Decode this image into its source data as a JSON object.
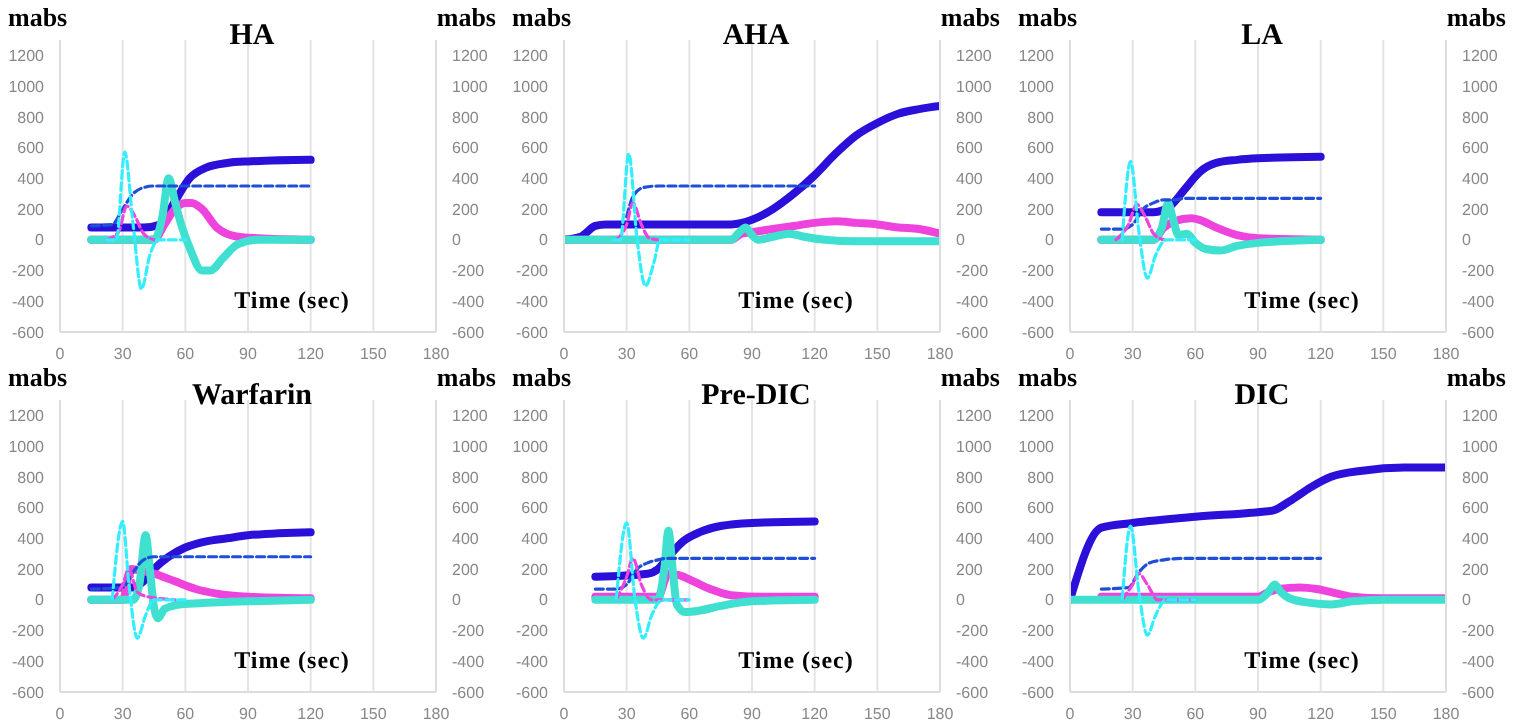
{
  "chart_data": [
    {
      "type": "line",
      "title": "HA",
      "xlabel": "Time (sec)",
      "ylabel": "mabs",
      "y2label": "mabs",
      "xlim": [
        0,
        180
      ],
      "xticks": [
        0,
        30,
        60,
        90,
        120,
        150,
        180
      ],
      "ylim": [
        -600,
        1300
      ],
      "yticks": [
        -600,
        -400,
        -200,
        0,
        200,
        400,
        600,
        800,
        1000,
        1200
      ],
      "y2lim": [
        -600,
        1300
      ],
      "y2ticks": [
        -600,
        -400,
        -200,
        0,
        200,
        400,
        600,
        800,
        1000,
        1200
      ],
      "grid": "x",
      "marker": "none",
      "series": [
        {
          "color": "#2a10d8",
          "line_style": "solid",
          "x": [
            15,
            40,
            48,
            55,
            62,
            70,
            80,
            90,
            120
          ],
          "values": [
            80,
            80,
            100,
            250,
            400,
            470,
            500,
            510,
            520
          ]
        },
        {
          "color": "#ee44dd",
          "line_style": "solid",
          "x": [
            15,
            45,
            50,
            55,
            60,
            63,
            68,
            75,
            85,
            95,
            120
          ],
          "values": [
            0,
            0,
            100,
            200,
            240,
            240,
            200,
            80,
            20,
            10,
            0
          ]
        },
        {
          "color": "#40e0d0",
          "line_style": "solid",
          "x": [
            15,
            45,
            49,
            52,
            55,
            58,
            62,
            68,
            72,
            78,
            85,
            95,
            120
          ],
          "values": [
            0,
            0,
            150,
            400,
            250,
            100,
            -50,
            -200,
            -200,
            -120,
            -30,
            0,
            0
          ]
        },
        {
          "color": "#1f4fd8",
          "line_style": "dashed",
          "x": [
            15,
            25,
            30,
            35,
            40,
            45,
            120
          ],
          "values": [
            90,
            100,
            200,
            300,
            340,
            350,
            350
          ]
        },
        {
          "color": "#ee44dd",
          "line_style": "dashed",
          "x": [
            22,
            28,
            32,
            36,
            40,
            45
          ],
          "values": [
            0,
            50,
            220,
            150,
            40,
            0
          ]
        },
        {
          "color": "#33eeff",
          "line_style": "dashed",
          "x": [
            22,
            27,
            31,
            35,
            39,
            43,
            47,
            60
          ],
          "values": [
            0,
            0,
            570,
            100,
            -320,
            -100,
            0,
            0
          ]
        }
      ]
    },
    {
      "type": "line",
      "title": "AHA",
      "xlabel": "Time (sec)",
      "ylabel": "mabs",
      "y2label": "mabs",
      "xlim": [
        0,
        180
      ],
      "xticks": [
        0,
        30,
        60,
        90,
        120,
        150,
        180
      ],
      "ylim": [
        -600,
        1300
      ],
      "yticks": [
        -600,
        -400,
        -200,
        0,
        200,
        400,
        600,
        800,
        1000,
        1200
      ],
      "y2lim": [
        -600,
        1300
      ],
      "y2ticks": [
        -600,
        -400,
        -200,
        0,
        200,
        400,
        600,
        800,
        1000,
        1200
      ],
      "grid": "x",
      "marker": "none",
      "series": [
        {
          "color": "#2a10d8",
          "line_style": "solid",
          "x": [
            0,
            8,
            15,
            20,
            80,
            90,
            100,
            110,
            120,
            130,
            140,
            150,
            160,
            170,
            180
          ],
          "values": [
            0,
            20,
            90,
            100,
            100,
            130,
            200,
            300,
            420,
            560,
            680,
            760,
            820,
            850,
            870
          ]
        },
        {
          "color": "#ee44dd",
          "line_style": "solid",
          "x": [
            0,
            80,
            85,
            90,
            100,
            110,
            120,
            130,
            140,
            150,
            160,
            170,
            180
          ],
          "values": [
            0,
            0,
            40,
            50,
            70,
            90,
            110,
            120,
            110,
            100,
            80,
            70,
            40
          ]
        },
        {
          "color": "#40e0d0",
          "line_style": "solid",
          "x": [
            0,
            80,
            84,
            87,
            90,
            93,
            100,
            108,
            115,
            125,
            140,
            180
          ],
          "values": [
            0,
            0,
            50,
            80,
            30,
            0,
            20,
            40,
            20,
            0,
            -10,
            -10
          ]
        },
        {
          "color": "#1f4fd8",
          "line_style": "dashed",
          "x": [
            30,
            33,
            38,
            45,
            120
          ],
          "values": [
            150,
            280,
            340,
            350,
            350
          ]
        },
        {
          "color": "#ee44dd",
          "line_style": "dashed",
          "x": [
            25,
            30,
            33,
            37,
            41,
            45
          ],
          "values": [
            0,
            100,
            240,
            100,
            10,
            0
          ]
        },
        {
          "color": "#33eeff",
          "line_style": "dashed",
          "x": [
            24,
            27,
            31,
            35,
            39,
            43,
            46,
            60
          ],
          "values": [
            0,
            0,
            560,
            0,
            -300,
            -150,
            0,
            0
          ]
        }
      ]
    },
    {
      "type": "line",
      "title": "LA",
      "xlabel": "Time (sec)",
      "ylabel": "mabs",
      "y2label": "mabs",
      "xlim": [
        0,
        180
      ],
      "xticks": [
        0,
        30,
        60,
        90,
        120,
        150,
        180
      ],
      "ylim": [
        -600,
        1300
      ],
      "yticks": [
        -600,
        -400,
        -200,
        0,
        200,
        400,
        600,
        800,
        1000,
        1200
      ],
      "y2lim": [
        -600,
        1300
      ],
      "y2ticks": [
        -600,
        -400,
        -200,
        0,
        200,
        400,
        600,
        800,
        1000,
        1200
      ],
      "grid": "x",
      "marker": "none",
      "series": [
        {
          "color": "#2a10d8",
          "line_style": "solid",
          "x": [
            15,
            40,
            48,
            55,
            62,
            70,
            80,
            90,
            120
          ],
          "values": [
            180,
            180,
            220,
            330,
            440,
            500,
            520,
            530,
            540
          ]
        },
        {
          "color": "#ee44dd",
          "line_style": "solid",
          "x": [
            15,
            40,
            45,
            50,
            58,
            62,
            70,
            80,
            90,
            120
          ],
          "values": [
            0,
            0,
            80,
            120,
            140,
            130,
            80,
            30,
            10,
            0
          ]
        },
        {
          "color": "#40e0d0",
          "line_style": "solid",
          "x": [
            15,
            40,
            44,
            47,
            49,
            52,
            56,
            60,
            65,
            72,
            80,
            90,
            120
          ],
          "values": [
            0,
            0,
            80,
            240,
            150,
            30,
            40,
            -20,
            -60,
            -70,
            -40,
            -20,
            0
          ]
        },
        {
          "color": "#1f4fd8",
          "line_style": "dashed",
          "x": [
            15,
            25,
            30,
            35,
            40,
            45,
            50,
            55,
            120
          ],
          "values": [
            70,
            70,
            100,
            200,
            240,
            260,
            260,
            270,
            270
          ]
        },
        {
          "color": "#ee44dd",
          "line_style": "dashed",
          "x": [
            22,
            28,
            32,
            36,
            40,
            45
          ],
          "values": [
            0,
            100,
            230,
            150,
            40,
            0
          ]
        },
        {
          "color": "#33eeff",
          "line_style": "dashed",
          "x": [
            25,
            29,
            33,
            37,
            41,
            46,
            60
          ],
          "values": [
            0,
            510,
            50,
            -250,
            -100,
            0,
            0
          ]
        }
      ]
    },
    {
      "type": "line",
      "title": "Warfarin",
      "xlabel": "Time (sec)",
      "ylabel": "mabs",
      "y2label": "mabs",
      "xlim": [
        0,
        180
      ],
      "xticks": [
        0,
        30,
        60,
        90,
        120,
        150,
        180
      ],
      "ylim": [
        -600,
        1300
      ],
      "yticks": [
        -600,
        -400,
        -200,
        0,
        200,
        400,
        600,
        800,
        1000,
        1200
      ],
      "y2lim": [
        -600,
        1300
      ],
      "y2ticks": [
        -600,
        -400,
        -200,
        0,
        200,
        400,
        600,
        800,
        1000,
        1200
      ],
      "grid": "x",
      "marker": "none",
      "series": [
        {
          "color": "#2a10d8",
          "line_style": "solid",
          "x": [
            15,
            35,
            40,
            45,
            52,
            60,
            70,
            80,
            90,
            120
          ],
          "values": [
            80,
            80,
            120,
            200,
            280,
            340,
            380,
            400,
            420,
            440
          ]
        },
        {
          "color": "#ee44dd",
          "line_style": "solid",
          "x": [
            15,
            30,
            34,
            38,
            45,
            55,
            65,
            75,
            90,
            120
          ],
          "values": [
            0,
            0,
            200,
            190,
            170,
            120,
            70,
            40,
            20,
            10
          ]
        },
        {
          "color": "#40e0d0",
          "line_style": "solid",
          "x": [
            15,
            35,
            38,
            41,
            43,
            45,
            47,
            50,
            58,
            70,
            90,
            120
          ],
          "values": [
            0,
            0,
            100,
            420,
            200,
            -50,
            -120,
            -60,
            -30,
            -20,
            -10,
            0
          ]
        },
        {
          "color": "#1f4fd8",
          "line_style": "dashed",
          "x": [
            15,
            30,
            35,
            40,
            45,
            120
          ],
          "values": [
            70,
            80,
            180,
            260,
            280,
            280
          ]
        },
        {
          "color": "#ee44dd",
          "line_style": "dashed",
          "x": [
            25,
            30,
            33,
            37,
            42,
            55
          ],
          "values": [
            0,
            100,
            200,
            50,
            20,
            0
          ]
        },
        {
          "color": "#33eeff",
          "line_style": "dashed",
          "x": [
            25,
            30,
            33,
            37,
            41,
            45,
            60
          ],
          "values": [
            0,
            510,
            100,
            -250,
            -100,
            0,
            0
          ]
        }
      ]
    },
    {
      "type": "line",
      "title": "Pre-DIC",
      "xlabel": "Time (sec)",
      "ylabel": "mabs",
      "y2label": "mabs",
      "xlim": [
        0,
        180
      ],
      "xticks": [
        0,
        30,
        60,
        90,
        120,
        150,
        180
      ],
      "ylim": [
        -600,
        1300
      ],
      "yticks": [
        -600,
        -400,
        -200,
        0,
        200,
        400,
        600,
        800,
        1000,
        1200
      ],
      "y2lim": [
        -600,
        1300
      ],
      "y2ticks": [
        -600,
        -400,
        -200,
        0,
        200,
        400,
        600,
        800,
        1000,
        1200
      ],
      "grid": "x",
      "marker": "none",
      "series": [
        {
          "color": "#2a10d8",
          "line_style": "solid",
          "x": [
            15,
            40,
            45,
            50,
            57,
            65,
            75,
            90,
            120
          ],
          "values": [
            150,
            170,
            200,
            280,
            380,
            440,
            480,
            500,
            510
          ]
        },
        {
          "color": "#ee44dd",
          "line_style": "solid",
          "x": [
            15,
            45,
            50,
            55,
            62,
            70,
            80,
            95,
            120
          ],
          "values": [
            20,
            20,
            170,
            160,
            120,
            70,
            30,
            20,
            20
          ]
        },
        {
          "color": "#40e0d0",
          "line_style": "solid",
          "x": [
            15,
            45,
            48,
            50,
            52,
            54,
            58,
            65,
            75,
            90,
            120
          ],
          "values": [
            0,
            0,
            200,
            450,
            200,
            -30,
            -80,
            -70,
            -40,
            -10,
            0
          ]
        },
        {
          "color": "#1f4fd8",
          "line_style": "dashed",
          "x": [
            15,
            25,
            30,
            35,
            40,
            45,
            50,
            120
          ],
          "values": [
            70,
            70,
            100,
            200,
            240,
            260,
            270,
            270
          ]
        },
        {
          "color": "#ee44dd",
          "line_style": "dashed",
          "x": [
            25,
            30,
            33,
            37,
            42,
            60
          ],
          "values": [
            0,
            150,
            270,
            100,
            0,
            0
          ]
        },
        {
          "color": "#33eeff",
          "line_style": "dashed",
          "x": [
            25,
            30,
            34,
            38,
            42,
            47,
            60
          ],
          "values": [
            0,
            500,
            0,
            -250,
            -100,
            0,
            0
          ]
        }
      ]
    },
    {
      "type": "line",
      "title": "DIC",
      "xlabel": "Time (sec)",
      "ylabel": "mabs",
      "y2label": "mabs",
      "xlim": [
        0,
        180
      ],
      "xticks": [
        0,
        30,
        60,
        90,
        120,
        150,
        180
      ],
      "ylim": [
        -600,
        1300
      ],
      "yticks": [
        -600,
        -400,
        -200,
        0,
        200,
        400,
        600,
        800,
        1000,
        1200
      ],
      "y2lim": [
        -600,
        1300
      ],
      "y2ticks": [
        -600,
        -400,
        -200,
        0,
        200,
        400,
        600,
        800,
        1000,
        1200
      ],
      "grid": "x",
      "marker": "none",
      "series": [
        {
          "color": "#2a10d8",
          "line_style": "solid",
          "x": [
            0,
            15,
            30,
            60,
            90,
            97,
            105,
            115,
            125,
            140,
            160,
            180
          ],
          "values": [
            0,
            470,
            500,
            540,
            570,
            580,
            640,
            730,
            800,
            840,
            860,
            860
          ]
        },
        {
          "color": "#ee44dd",
          "line_style": "solid",
          "x": [
            15,
            90,
            95,
            100,
            110,
            118,
            125,
            135,
            150,
            180
          ],
          "values": [
            20,
            20,
            50,
            70,
            80,
            70,
            50,
            20,
            10,
            10
          ]
        },
        {
          "color": "#40e0d0",
          "line_style": "solid",
          "x": [
            0,
            90,
            95,
            98,
            101,
            105,
            115,
            125,
            135,
            150,
            180
          ],
          "values": [
            0,
            0,
            50,
            100,
            50,
            10,
            -20,
            -30,
            -10,
            0,
            0
          ]
        },
        {
          "color": "#1f4fd8",
          "line_style": "dashed",
          "x": [
            15,
            28,
            33,
            38,
            45,
            55,
            120
          ],
          "values": [
            70,
            80,
            180,
            240,
            260,
            270,
            270
          ]
        },
        {
          "color": "#ee44dd",
          "line_style": "dashed",
          "x": [
            25,
            30,
            33,
            37,
            42,
            60
          ],
          "values": [
            0,
            100,
            170,
            100,
            0,
            0
          ]
        },
        {
          "color": "#33eeff",
          "line_style": "dashed",
          "x": [
            25,
            29,
            33,
            37,
            41,
            46,
            60
          ],
          "values": [
            0,
            480,
            50,
            -230,
            -100,
            0,
            0
          ]
        }
      ]
    }
  ]
}
